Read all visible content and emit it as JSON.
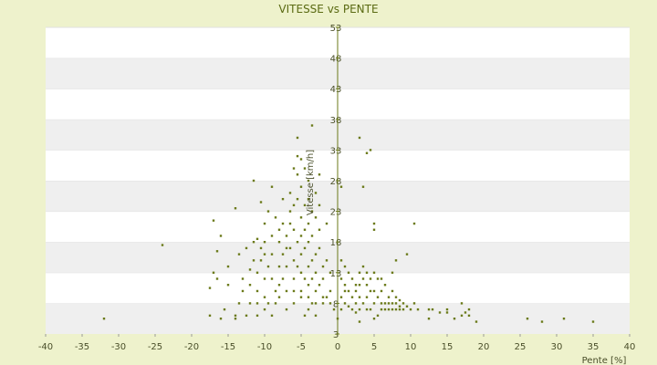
{
  "chart_data": {
    "type": "scatter",
    "title": "VITESSE vs PENTE",
    "xlabel": "Pente [%]",
    "ylabel": "Vitesse [km/h]",
    "xlim": [
      -40,
      40
    ],
    "ylim": [
      3,
      53
    ],
    "xticks": [
      -40,
      -35,
      -30,
      -25,
      -20,
      -15,
      -10,
      -5,
      0,
      5,
      10,
      15,
      20,
      25,
      30,
      35,
      40
    ],
    "yticks": [
      3,
      8,
      13,
      18,
      23,
      28,
      33,
      38,
      43,
      48,
      53
    ],
    "grid": "horizontal bands",
    "legend": "none",
    "colors": {
      "band_light": "#ffffff",
      "band_dark": "#efefef",
      "point": "#6b7a1a",
      "axis": "#6b7a1a",
      "frame_bg": "#eef2cc"
    },
    "series": [
      {
        "points": [
          [
            -32,
            5.5
          ],
          [
            -24,
            17.5
          ],
          [
            -17.5,
            6
          ],
          [
            -17.5,
            10.5
          ],
          [
            -17,
            21.5
          ],
          [
            -17,
            13
          ],
          [
            -16.5,
            16.5
          ],
          [
            -16.5,
            12
          ],
          [
            -16,
            19
          ],
          [
            -16,
            5.5
          ],
          [
            -15.5,
            7
          ],
          [
            -15,
            14
          ],
          [
            -15,
            11
          ],
          [
            -14,
            23.5
          ],
          [
            -14,
            6
          ],
          [
            -13.5,
            16
          ],
          [
            -13,
            12
          ],
          [
            -13,
            10
          ],
          [
            -12.5,
            17
          ],
          [
            -12,
            13.5
          ],
          [
            -12,
            11
          ],
          [
            -12,
            8
          ],
          [
            -11.5,
            18
          ],
          [
            -11.5,
            15
          ],
          [
            -11.5,
            28
          ],
          [
            -11,
            13
          ],
          [
            -11,
            10
          ],
          [
            -11,
            8
          ],
          [
            -11,
            6
          ],
          [
            -10.5,
            24.5
          ],
          [
            -10.5,
            17
          ],
          [
            -10.5,
            15
          ],
          [
            -10,
            21
          ],
          [
            -10,
            18
          ],
          [
            -10,
            16
          ],
          [
            -10,
            12
          ],
          [
            -10,
            9
          ],
          [
            -9.5,
            23
          ],
          [
            -9.5,
            14
          ],
          [
            -9.5,
            8
          ],
          [
            -9,
            27
          ],
          [
            -9,
            19
          ],
          [
            -9,
            16
          ],
          [
            -9,
            12
          ],
          [
            -8.5,
            22
          ],
          [
            -8.5,
            10
          ],
          [
            -8.5,
            8
          ],
          [
            -8,
            20
          ],
          [
            -8,
            18
          ],
          [
            -8,
            14
          ],
          [
            -8,
            11
          ],
          [
            -7.5,
            25
          ],
          [
            -7.5,
            21
          ],
          [
            -7.5,
            16
          ],
          [
            -7.5,
            12
          ],
          [
            -7,
            19
          ],
          [
            -7,
            17
          ],
          [
            -7,
            14
          ],
          [
            -7,
            10
          ],
          [
            -6.5,
            26
          ],
          [
            -6.5,
            23
          ],
          [
            -6.5,
            21
          ],
          [
            -6.5,
            17
          ],
          [
            -6,
            30
          ],
          [
            -6,
            24
          ],
          [
            -6,
            20
          ],
          [
            -6,
            15
          ],
          [
            -6,
            12
          ],
          [
            -6,
            10
          ],
          [
            -5.5,
            35
          ],
          [
            -5.5,
            29
          ],
          [
            -5.5,
            32
          ],
          [
            -5.5,
            25
          ],
          [
            -5.5,
            18
          ],
          [
            -5.5,
            14
          ],
          [
            -5,
            31.5
          ],
          [
            -5,
            27
          ],
          [
            -5,
            22
          ],
          [
            -5,
            19
          ],
          [
            -5,
            16
          ],
          [
            -5,
            13
          ],
          [
            -5,
            10
          ],
          [
            -4.5,
            30
          ],
          [
            -4.5,
            24
          ],
          [
            -4.5,
            20
          ],
          [
            -4.5,
            17
          ],
          [
            -4.5,
            12
          ],
          [
            -4,
            28
          ],
          [
            -4,
            25
          ],
          [
            -4,
            21
          ],
          [
            -4,
            18
          ],
          [
            -4,
            14
          ],
          [
            -4,
            11
          ],
          [
            -4,
            9
          ],
          [
            -4,
            7
          ],
          [
            -3.5,
            37
          ],
          [
            -3.5,
            23
          ],
          [
            -3.5,
            19
          ],
          [
            -3.5,
            15
          ],
          [
            -3.5,
            12
          ],
          [
            -3.5,
            8
          ],
          [
            -3,
            26
          ],
          [
            -3,
            22
          ],
          [
            -3,
            16
          ],
          [
            -3,
            13
          ],
          [
            -3,
            10
          ],
          [
            -3,
            6
          ],
          [
            -2.5,
            29
          ],
          [
            -2.5,
            24
          ],
          [
            -2.5,
            20
          ],
          [
            -2.5,
            17
          ],
          [
            -2.5,
            11
          ],
          [
            -2,
            14
          ],
          [
            -2,
            12
          ],
          [
            -2,
            9
          ],
          [
            -1.5,
            21
          ],
          [
            -1.5,
            15
          ],
          [
            -1,
            13
          ],
          [
            -1,
            10
          ],
          [
            -4.5,
            6
          ],
          [
            -7,
            7
          ],
          [
            -9,
            6
          ],
          [
            -10,
            7
          ],
          [
            -12.5,
            6
          ],
          [
            -13.5,
            8
          ],
          [
            -14,
            5.5
          ],
          [
            -11,
            18.5
          ],
          [
            -8,
            9
          ],
          [
            -6,
            8
          ],
          [
            -5,
            9
          ],
          [
            -3,
            8
          ],
          [
            -2,
            8
          ],
          [
            -1.5,
            9
          ],
          [
            -1,
            8
          ],
          [
            -0.5,
            7
          ],
          [
            0.5,
            27
          ],
          [
            0.5,
            15
          ],
          [
            0.5,
            12
          ],
          [
            0.5,
            9
          ],
          [
            0.5,
            7
          ],
          [
            1,
            14
          ],
          [
            1,
            11
          ],
          [
            1,
            10
          ],
          [
            1,
            8
          ],
          [
            1.5,
            13
          ],
          [
            1.5,
            10
          ],
          [
            1.5,
            7.5
          ],
          [
            2,
            12
          ],
          [
            2,
            9
          ],
          [
            2,
            7
          ],
          [
            2.5,
            11
          ],
          [
            2.5,
            10
          ],
          [
            2.5,
            8
          ],
          [
            2.5,
            6.5
          ],
          [
            3,
            35
          ],
          [
            3,
            13
          ],
          [
            3,
            11
          ],
          [
            3,
            9
          ],
          [
            3,
            7
          ],
          [
            3.5,
            27
          ],
          [
            3.5,
            14
          ],
          [
            3.5,
            12
          ],
          [
            3.5,
            8
          ],
          [
            4,
            32.5
          ],
          [
            4,
            13
          ],
          [
            4,
            11
          ],
          [
            4,
            9
          ],
          [
            4,
            7
          ],
          [
            4.5,
            33
          ],
          [
            4.5,
            12
          ],
          [
            4.5,
            10
          ],
          [
            4.5,
            7
          ],
          [
            5,
            13
          ],
          [
            5,
            10
          ],
          [
            5,
            8
          ],
          [
            5.5,
            12
          ],
          [
            5.5,
            9
          ],
          [
            5.5,
            6
          ],
          [
            6,
            12
          ],
          [
            6,
            10
          ],
          [
            6,
            8
          ],
          [
            6,
            7
          ],
          [
            6.5,
            11
          ],
          [
            6.5,
            8
          ],
          [
            6.5,
            7
          ],
          [
            7,
            9
          ],
          [
            7,
            8
          ],
          [
            7,
            7
          ],
          [
            7.5,
            10
          ],
          [
            7.5,
            8
          ],
          [
            7.5,
            7
          ],
          [
            8,
            9
          ],
          [
            8,
            8
          ],
          [
            8,
            7
          ],
          [
            8.5,
            8.5
          ],
          [
            8.5,
            7.5
          ],
          [
            8.5,
            7
          ],
          [
            9,
            8
          ],
          [
            9,
            7
          ],
          [
            9.5,
            7.5
          ],
          [
            10,
            7
          ],
          [
            10.5,
            8
          ],
          [
            11,
            7
          ],
          [
            5,
            20
          ],
          [
            5,
            21
          ],
          [
            7.5,
            13
          ],
          [
            8,
            15
          ],
          [
            9.5,
            16
          ],
          [
            10.5,
            21
          ],
          [
            12.5,
            7
          ],
          [
            12.5,
            5.5
          ],
          [
            13,
            7
          ],
          [
            14,
            6.5
          ],
          [
            15,
            6.5
          ],
          [
            15,
            7
          ],
          [
            16,
            5.5
          ],
          [
            17,
            6
          ],
          [
            17,
            8
          ],
          [
            17.5,
            6.5
          ],
          [
            18,
            6
          ],
          [
            18,
            7
          ],
          [
            19,
            5
          ],
          [
            26,
            5.5
          ],
          [
            28,
            5
          ],
          [
            31,
            5.5
          ],
          [
            35,
            5
          ],
          [
            3,
            5
          ],
          [
            5,
            5.5
          ],
          [
            0,
            5.5
          ]
        ]
      }
    ]
  }
}
